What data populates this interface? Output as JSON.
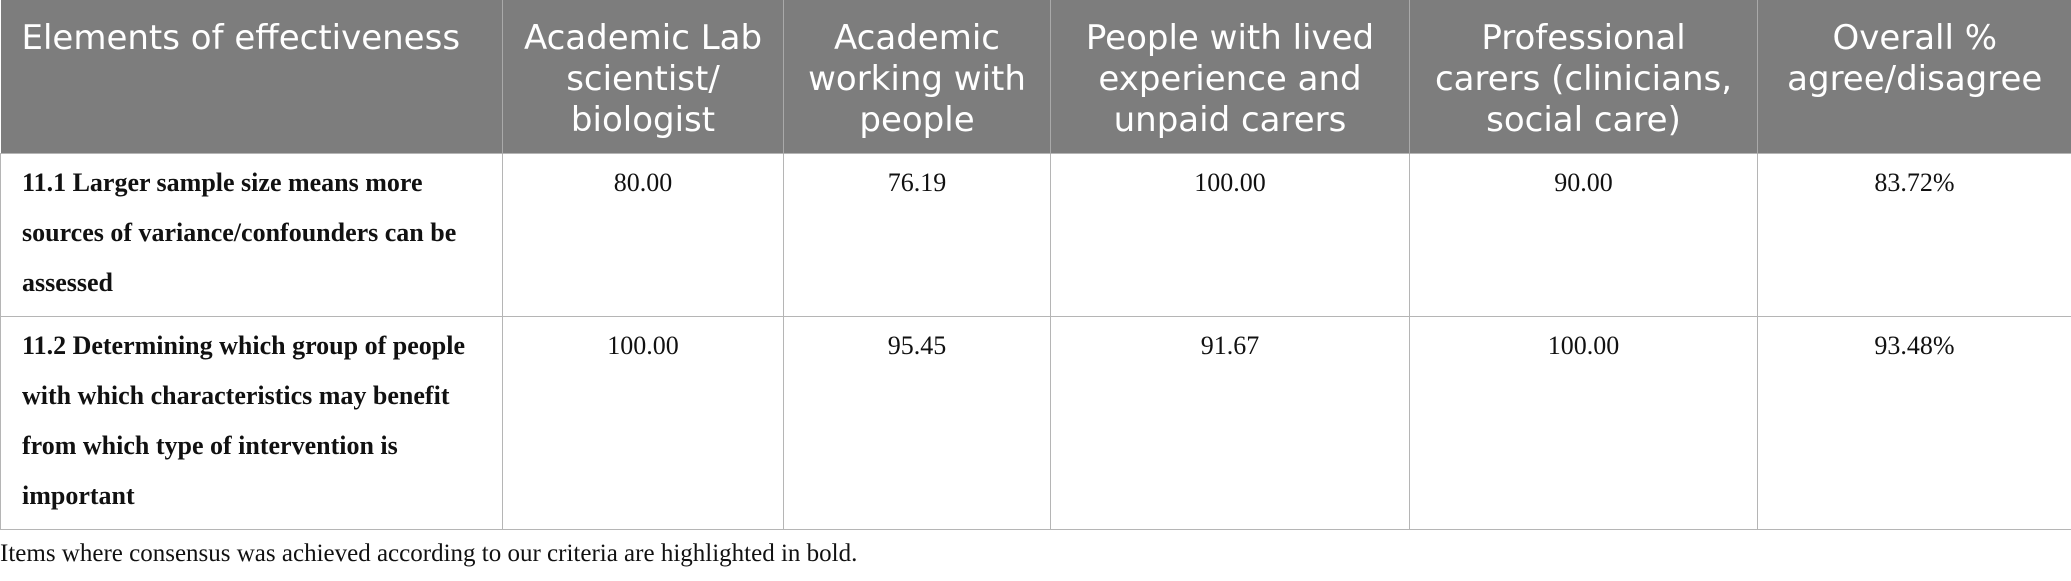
{
  "header": {
    "columns": [
      "Elements of effectiveness",
      "Academic Lab scientist/ biologist",
      "Academic working with people",
      "People with lived experience and unpaid carers",
      "Professional carers (clinicians, social care)",
      "Overall % agree/disagree"
    ]
  },
  "table": {
    "rows": [
      [
        "11.1 Larger sample size means more sources of variance/confounders can be assessed",
        "80.00",
        "76.19",
        "100.00",
        "90.00",
        "83.72%"
      ],
      [
        "11.2 Determining which group of people with which characteristics may benefit from which type of intervention is important",
        "100.00",
        "95.45",
        "91.67",
        "100.00",
        "93.48%"
      ]
    ]
  },
  "footnote": "Items where consensus was achieved according to our criteria are highlighted in bold."
}
